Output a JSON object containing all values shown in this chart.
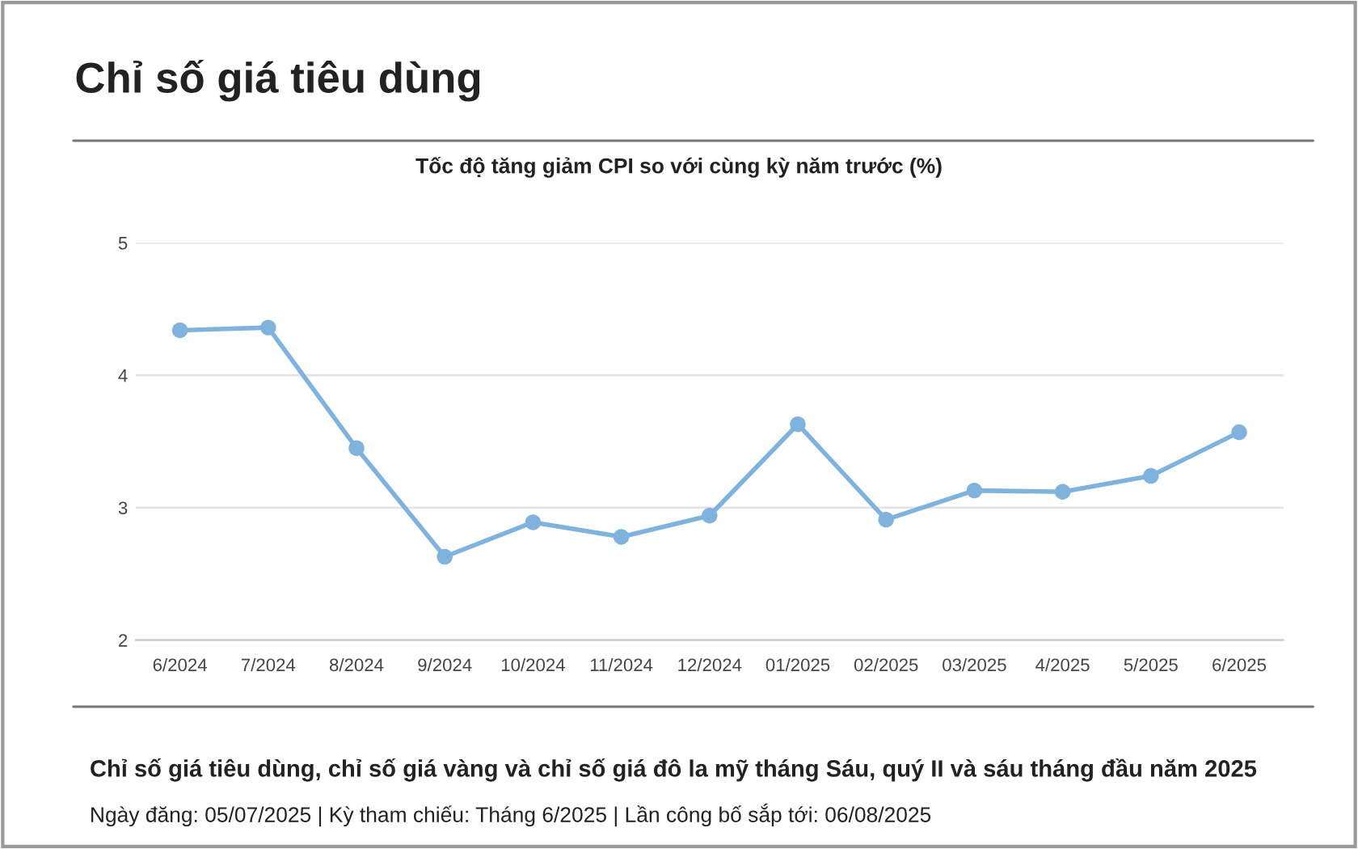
{
  "chart_data": {
    "type": "line",
    "title": "Chỉ số giá tiêu dùng",
    "subtitle": "Tốc độ tăng giảm CPI so với cùng kỳ năm trước (%)",
    "categories": [
      "6/2024",
      "7/2024",
      "8/2024",
      "9/2024",
      "10/2024",
      "11/2024",
      "12/2024",
      "01/2025",
      "02/2025",
      "03/2025",
      "4/2025",
      "5/2025",
      "6/2025"
    ],
    "series": [
      {
        "color": "#7fb2dd",
        "values": [
          4.34,
          4.36,
          3.45,
          2.63,
          2.89,
          2.78,
          2.94,
          3.63,
          2.91,
          3.13,
          3.12,
          3.24,
          3.57
        ]
      }
    ],
    "ylim": [
      2,
      5
    ],
    "yticks": [
      2,
      3,
      4,
      5
    ],
    "grid": "y",
    "marker": "circle",
    "line_style": "solid",
    "annotations": [
      "Chỉ số giá tiêu dùng, chỉ số giá vàng và chỉ số giá đô la mỹ tháng Sáu, quý II và sáu tháng đầu năm 2025",
      "Ngày đăng: 05/07/2025 | Kỳ tham chiếu: Tháng 6/2025 | Lần công bố sắp tới: 06/08/2025"
    ]
  }
}
